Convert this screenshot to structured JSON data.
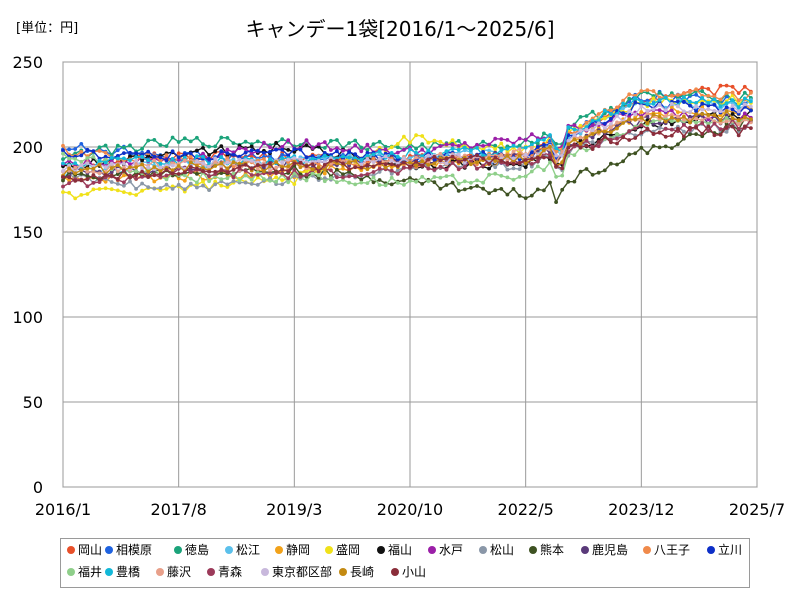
{
  "chart_data": {
    "type": "line",
    "title": "キャンデー1袋[2016/1～2025/6]",
    "unit_label": "[単位：円]",
    "ylim": [
      0,
      250
    ],
    "y_ticks": [
      0,
      50,
      100,
      150,
      200,
      250
    ],
    "x_ticks": [
      "2016/1",
      "2017/8",
      "2019/3",
      "2020/10",
      "2022/5",
      "2023/12",
      "2025/7"
    ],
    "grid": true,
    "legend_position": "bottom",
    "series": [
      {
        "name": "岡山",
        "color": "#e8502a",
        "approx": {
          "2016/1": 190,
          "2017/8": 195,
          "2019/3": 194,
          "2020/10": 192,
          "2022/5": 195,
          "2023/12": 228,
          "2025/6": 235
        }
      },
      {
        "name": "相模原",
        "color": "#1f63e0",
        "approx": {
          "2016/1": 200,
          "2017/8": 195,
          "2019/3": 193,
          "2020/10": 193,
          "2022/5": 193,
          "2023/12": 230,
          "2025/6": 227
        }
      },
      {
        "name": "徳島",
        "color": "#1ba37a",
        "approx": {
          "2016/1": 195,
          "2017/8": 203,
          "2019/3": 203,
          "2020/10": 200,
          "2022/5": 202,
          "2023/12": 230,
          "2025/6": 230
        }
      },
      {
        "name": "松江",
        "color": "#5bc0eb",
        "approx": {
          "2016/1": 185,
          "2017/8": 190,
          "2019/3": 192,
          "2020/10": 195,
          "2022/5": 196,
          "2023/12": 225,
          "2025/6": 225
        }
      },
      {
        "name": "静岡",
        "color": "#f2a21a",
        "approx": {
          "2016/1": 180,
          "2017/8": 183,
          "2019/3": 185,
          "2020/10": 190,
          "2022/5": 192,
          "2023/12": 220,
          "2025/6": 222
        }
      },
      {
        "name": "盛岡",
        "color": "#f0e11a",
        "approx": {
          "2016/1": 172,
          "2017/8": 176,
          "2019/3": 181,
          "2020/10": 205,
          "2022/5": 198,
          "2023/12": 226,
          "2025/6": 228
        }
      },
      {
        "name": "福山",
        "color": "#111111",
        "approx": {
          "2016/1": 188,
          "2017/8": 197,
          "2019/3": 200,
          "2020/10": 190,
          "2022/5": 190,
          "2023/12": 213,
          "2025/6": 220
        }
      },
      {
        "name": "水戸",
        "color": "#9b1fa8",
        "approx": {
          "2016/1": 190,
          "2017/8": 193,
          "2019/3": 202,
          "2020/10": 197,
          "2022/5": 204,
          "2023/12": 220,
          "2025/6": 218
        }
      },
      {
        "name": "松山",
        "color": "#8a97a8",
        "approx": {
          "2016/1": 182,
          "2017/8": 176,
          "2019/3": 180,
          "2020/10": 188,
          "2022/5": 190,
          "2023/12": 210,
          "2025/6": 212
        }
      },
      {
        "name": "熊本",
        "color": "#3e5222",
        "approx": {
          "2016/1": 182,
          "2017/8": 185,
          "2019/3": 186,
          "2020/10": 180,
          "2022/5": 172,
          "2023/12": 197,
          "2025/6": 215
        }
      },
      {
        "name": "鹿児島",
        "color": "#5a3a7a",
        "approx": {
          "2016/1": 185,
          "2017/8": 188,
          "2019/3": 190,
          "2020/10": 192,
          "2022/5": 195,
          "2023/12": 215,
          "2025/6": 217
        }
      },
      {
        "name": "八王子",
        "color": "#f08a4b",
        "approx": {
          "2016/1": 198,
          "2017/8": 192,
          "2019/3": 190,
          "2020/10": 191,
          "2022/5": 194,
          "2023/12": 232,
          "2025/6": 230
        }
      },
      {
        "name": "立川",
        "color": "#0d2fc8",
        "approx": {
          "2016/1": 196,
          "2017/8": 195,
          "2019/3": 196,
          "2020/10": 194,
          "2022/5": 195,
          "2023/12": 225,
          "2025/6": 222
        }
      },
      {
        "name": "福井",
        "color": "#8fcf8a",
        "approx": {
          "2016/1": 195,
          "2017/8": 182,
          "2019/3": 182,
          "2020/10": 180,
          "2022/5": 183,
          "2023/12": 214,
          "2025/6": 218
        }
      },
      {
        "name": "豊橋",
        "color": "#12b8d8",
        "approx": {
          "2016/1": 190,
          "2017/8": 192,
          "2019/3": 192,
          "2020/10": 196,
          "2022/5": 198,
          "2023/12": 228,
          "2025/6": 226
        }
      },
      {
        "name": "藤沢",
        "color": "#e8a08a",
        "approx": {
          "2016/1": 186,
          "2017/8": 190,
          "2019/3": 188,
          "2020/10": 192,
          "2022/5": 196,
          "2023/12": 218,
          "2025/6": 216
        }
      },
      {
        "name": "青森",
        "color": "#9c3a5a",
        "approx": {
          "2016/1": 178,
          "2017/8": 185,
          "2019/3": 184,
          "2020/10": 186,
          "2022/5": 192,
          "2023/12": 210,
          "2025/6": 214
        }
      },
      {
        "name": "東京都区部",
        "color": "#c8b8dc",
        "approx": {
          "2016/1": 188,
          "2017/8": 190,
          "2019/3": 191,
          "2020/10": 192,
          "2022/5": 194,
          "2023/12": 222,
          "2025/6": 224
        }
      },
      {
        "name": "長崎",
        "color": "#c38a12",
        "approx": {
          "2016/1": 186,
          "2017/8": 188,
          "2019/3": 189,
          "2020/10": 190,
          "2022/5": 193,
          "2023/12": 216,
          "2025/6": 219
        }
      },
      {
        "name": "小山",
        "color": "#8a2d3a",
        "approx": {
          "2016/1": 180,
          "2017/8": 187,
          "2019/3": 188,
          "2020/10": 191,
          "2022/5": 193,
          "2023/12": 208,
          "2025/6": 210
        }
      }
    ]
  }
}
